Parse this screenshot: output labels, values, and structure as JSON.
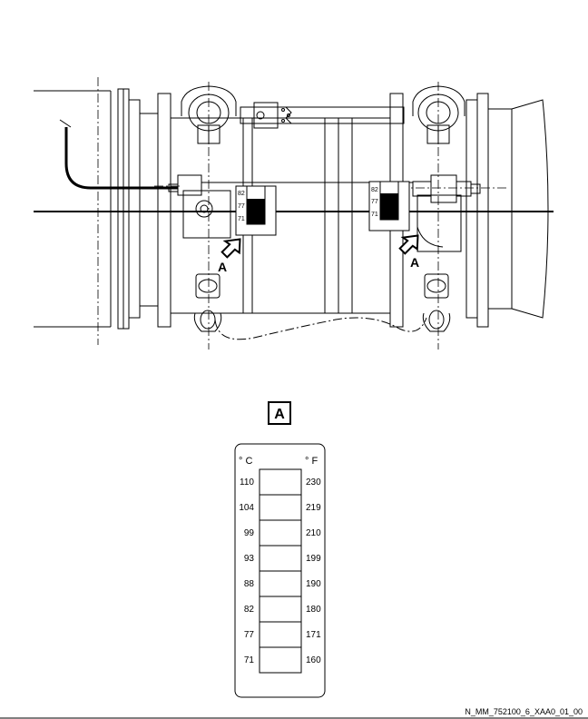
{
  "callouts": {
    "left": "A",
    "right": "A",
    "detail_box": "A"
  },
  "small_label": {
    "left": [
      "82",
      "77",
      "71"
    ],
    "right": [
      "82",
      "77",
      "71"
    ]
  },
  "detail_label": {
    "unit_c": "° C",
    "unit_f": "° F",
    "rows": [
      {
        "c": "110",
        "f": "230"
      },
      {
        "c": "104",
        "f": "219"
      },
      {
        "c": "99",
        "f": "210"
      },
      {
        "c": "93",
        "f": "199"
      },
      {
        "c": "88",
        "f": "190"
      },
      {
        "c": "82",
        "f": "180"
      },
      {
        "c": "77",
        "f": "171"
      },
      {
        "c": "71",
        "f": "160"
      }
    ]
  },
  "footer": {
    "reference": "N_MM_752100_6_XAA0_01_00"
  }
}
